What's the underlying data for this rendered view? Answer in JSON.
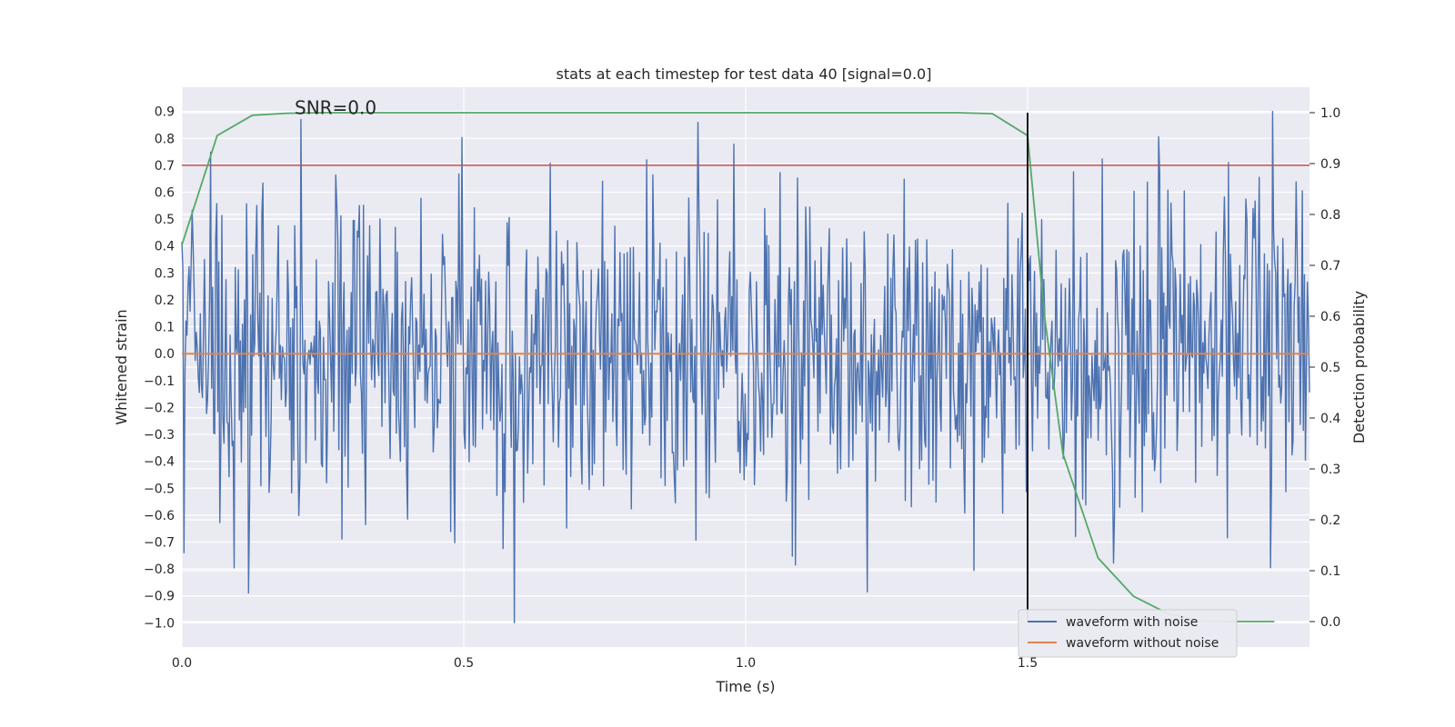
{
  "chart_data": {
    "type": "line",
    "title": "stats at each timestep for test data 40 [signal=0.0]",
    "xlabel": "Time (s)",
    "ylabel": "Whitened strain",
    "y2label": "Detection probability",
    "xlim": [
      0.0,
      2.0
    ],
    "ylim": [
      -1.09,
      0.99
    ],
    "y2lim": [
      -0.05,
      1.05
    ],
    "xticks": [
      0.0,
      0.5,
      1.0,
      1.5
    ],
    "xtick_labels": [
      "0.0",
      "0.5",
      "1.0",
      "1.5"
    ],
    "yticks": [
      0.9,
      0.8,
      0.7,
      0.6,
      0.5,
      0.4,
      0.3,
      0.2,
      0.1,
      0.0,
      -0.1,
      -0.2,
      -0.3,
      -0.4,
      -0.5,
      -0.6,
      -0.7,
      -0.8,
      -0.9,
      -1.0
    ],
    "ytick_labels": [
      "0.9",
      "0.8",
      "0.7",
      "0.6",
      "0.5",
      "0.4",
      "0.3",
      "0.2",
      "0.1",
      "0.0",
      "−0.1",
      "−0.2",
      "−0.3",
      "−0.4",
      "−0.5",
      "−0.6",
      "−0.7",
      "−0.8",
      "−0.9",
      "−1.0"
    ],
    "y2ticks": [
      1.0,
      0.9,
      0.8,
      0.7,
      0.6,
      0.5,
      0.4,
      0.3,
      0.2,
      0.1,
      0.0
    ],
    "y2tick_labels": [
      "1.0",
      "0.9",
      "0.8",
      "0.7",
      "0.6",
      "0.5",
      "0.4",
      "0.3",
      "0.2",
      "0.1",
      "0.0"
    ],
    "grid": true,
    "legend_position": "lower-right",
    "annotation": "SNR=0.0",
    "annotation_x": 0.2,
    "annotation_y": 0.9,
    "threshold": 0.7,
    "vline_x": 1.5,
    "series": [
      {
        "name": "waveform with noise",
        "color": "#4c72b0",
        "kind": "noise",
        "count": 1100,
        "std": 0.3,
        "seed": 40
      },
      {
        "name": "waveform without noise",
        "color": "#dd8452",
        "kind": "constant",
        "x": [
          0.0,
          2.0
        ],
        "y": [
          0.0,
          0.0
        ]
      },
      {
        "name": "detection probability",
        "color": "#55a868",
        "axis": "right",
        "x": [
          0.0,
          0.0625,
          0.125,
          0.1875,
          0.25,
          0.3125,
          0.375,
          0.4375,
          0.5,
          1.0,
          1.375,
          1.4375,
          1.5,
          1.53,
          1.5625,
          1.625,
          1.6875,
          1.75,
          1.8125,
          1.875,
          1.9375
        ],
        "y": [
          0.74,
          0.955,
          0.995,
          0.999,
          1.0,
          1.0,
          1.0,
          1.0,
          1.0,
          1.0,
          1.0,
          0.998,
          0.955,
          0.6,
          0.33,
          0.125,
          0.05,
          0.015,
          0.001,
          0.0,
          0.0
        ]
      }
    ],
    "threshold_color": "#c44e52",
    "vline_color": "#000000"
  }
}
